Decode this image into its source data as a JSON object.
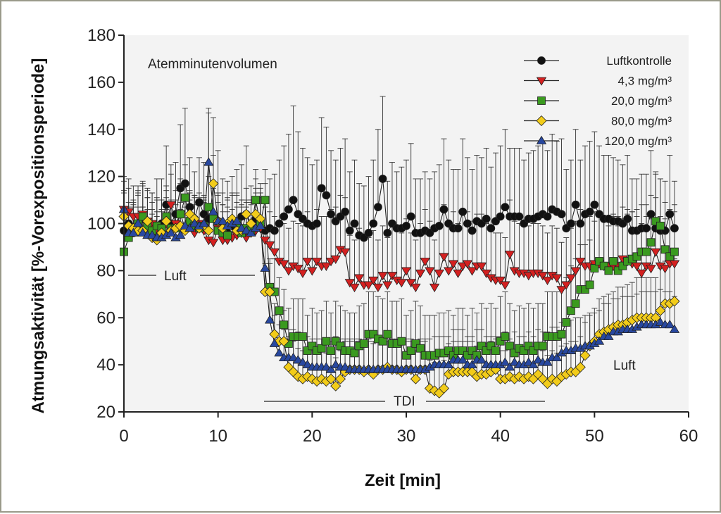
{
  "colors": {
    "background": "#f3f3f3",
    "axis": "#222222",
    "frame": "#9a9a8a"
  },
  "chart_data": {
    "type": "line",
    "title": "Atemminutenvolumen",
    "xlabel": "Zeit [min]",
    "ylabel": "Atmungsaktivität [%-Vorexpositionsperiode]",
    "xlim": [
      0,
      60
    ],
    "ylim": [
      20,
      180
    ],
    "xticks": [
      0,
      10,
      20,
      30,
      40,
      50,
      60
    ],
    "yticks": [
      20,
      40,
      60,
      80,
      100,
      120,
      140,
      160,
      180
    ],
    "legend_position": "top-right",
    "annotations": [
      {
        "id": "luft-pre",
        "text": "Luft",
        "x": 6,
        "y": 78
      },
      {
        "id": "tdi",
        "text": "TDI",
        "x": 30,
        "y": 25
      },
      {
        "id": "luft-post",
        "text": "Luft",
        "x": 53,
        "y": 40
      }
    ],
    "x": [
      0,
      0.5,
      1,
      1.5,
      2,
      2.5,
      3,
      3.5,
      4,
      4.5,
      5,
      5.5,
      6,
      6.5,
      7,
      7.5,
      8,
      8.5,
      9,
      9.5,
      10,
      10.5,
      11,
      11.5,
      12,
      12.5,
      13,
      13.5,
      14,
      14.5,
      15,
      15.5,
      16,
      16.5,
      17,
      17.5,
      18,
      18.5,
      19,
      19.5,
      20,
      20.5,
      21,
      21.5,
      22,
      22.5,
      23,
      23.5,
      24,
      24.5,
      25,
      25.5,
      26,
      26.5,
      27,
      27.5,
      28,
      28.5,
      29,
      29.5,
      30,
      30.5,
      31,
      31.5,
      32,
      32.5,
      33,
      33.5,
      34,
      34.5,
      35,
      35.5,
      36,
      36.5,
      37,
      37.5,
      38,
      38.5,
      39,
      39.5,
      40,
      40.5,
      41,
      41.5,
      42,
      42.5,
      43,
      43.5,
      44,
      44.5,
      45,
      45.5,
      46,
      46.5,
      47,
      47.5,
      48,
      48.5,
      49,
      49.5,
      50,
      50.5,
      51,
      51.5,
      52,
      52.5,
      53,
      53.5,
      54,
      54.5,
      55,
      55.5,
      56,
      56.5,
      57,
      57.5,
      58,
      58.5
    ],
    "series": [
      {
        "name": "Luftkontrolle",
        "marker": "circle",
        "color": "#111111",
        "values": [
          97,
          100,
          96,
          98,
          102,
          100,
          96,
          99,
          100,
          108,
          100,
          104,
          115,
          117,
          107,
          102,
          109,
          104,
          102,
          102,
          101,
          100,
          96,
          99,
          100,
          103,
          104,
          98,
          102,
          100,
          97,
          98,
          97,
          100,
          103,
          106,
          110,
          104,
          102,
          100,
          99,
          100,
          115,
          112,
          104,
          101,
          103,
          105,
          97,
          100,
          95,
          94,
          96,
          100,
          107,
          119,
          96,
          100,
          98,
          98,
          99,
          103,
          96,
          96,
          97,
          96,
          98,
          99,
          106,
          100,
          98,
          98,
          105,
          100,
          97,
          101,
          100,
          102,
          98,
          101,
          103,
          107,
          103,
          103,
          103,
          100,
          102,
          102,
          103,
          104,
          103,
          106,
          105,
          104,
          98,
          100,
          108,
          100,
          104,
          105,
          108,
          104,
          102,
          102,
          101,
          101,
          100,
          102,
          97,
          97,
          98,
          98,
          104,
          98,
          97,
          97,
          104,
          98
        ],
        "errors": [
          17,
          15,
          14,
          16,
          15,
          15,
          17,
          20,
          19,
          25,
          21,
          22,
          27,
          32,
          21,
          20,
          19,
          22,
          45,
          43,
          30,
          19,
          22,
          21,
          23,
          22,
          29,
          18,
          17,
          17,
          20,
          21,
          24,
          27,
          30,
          32,
          40,
          35,
          30,
          28,
          26,
          27,
          30,
          29,
          27,
          26,
          29,
          31,
          25,
          27,
          22,
          22,
          24,
          27,
          33,
          35,
          22,
          26,
          24,
          26,
          28,
          31,
          23,
          23,
          25,
          23,
          24,
          26,
          30,
          27,
          25,
          25,
          31,
          28,
          26,
          28,
          28,
          30,
          26,
          29,
          30,
          33,
          29,
          29,
          29,
          27,
          28,
          29,
          30,
          30,
          28,
          32,
          30,
          32,
          25,
          27,
          32,
          27,
          29,
          30,
          31,
          29,
          27,
          27,
          27,
          26,
          25,
          27,
          22,
          22,
          23,
          23,
          27,
          23,
          22,
          21,
          25,
          20
        ]
      },
      {
        "name": "4,3 mg/m³",
        "marker": "triangle-down",
        "color": "#d42020",
        "values": [
          106,
          105,
          103,
          103,
          104,
          101,
          100,
          98,
          98,
          100,
          108,
          100,
          104,
          98,
          100,
          96,
          100,
          97,
          93,
          92,
          98,
          93,
          93,
          94,
          95,
          96,
          94,
          96,
          97,
          98,
          93,
          91,
          88,
          84,
          83,
          80,
          82,
          81,
          79,
          84,
          80,
          84,
          82,
          82,
          84,
          85,
          89,
          88,
          75,
          73,
          77,
          74,
          74,
          76,
          73,
          78,
          74,
          78,
          76,
          75,
          80,
          75,
          73,
          79,
          84,
          80,
          73,
          79,
          86,
          80,
          83,
          79,
          82,
          83,
          80,
          82,
          82,
          79,
          77,
          76,
          76,
          74,
          87,
          80,
          79,
          79,
          78,
          79,
          79,
          78,
          76,
          78,
          77,
          72,
          74,
          77,
          80,
          84,
          82,
          82,
          83,
          83,
          82,
          82,
          82,
          82,
          85,
          84,
          83,
          82,
          79,
          82,
          81,
          88,
          82,
          81,
          83,
          83
        ],
        "errors": [
          14,
          14,
          13,
          13,
          14,
          13,
          13,
          12,
          12,
          14,
          17,
          14,
          15,
          12,
          13,
          12,
          13,
          13,
          11,
          12,
          15,
          12,
          12,
          12,
          14,
          14,
          13,
          14,
          16,
          17,
          14,
          14,
          15,
          16,
          17,
          18,
          19,
          19,
          20,
          21,
          20,
          22,
          21,
          21,
          22,
          22,
          23,
          23,
          20,
          20,
          21,
          20,
          20,
          21,
          20,
          21,
          20,
          21,
          21,
          21,
          22,
          21,
          20,
          21,
          22,
          21,
          20,
          21,
          22,
          21,
          22,
          21,
          22,
          22,
          21,
          22,
          22,
          21,
          20,
          20,
          20,
          20,
          23,
          21,
          21,
          21,
          21,
          21,
          21,
          21,
          20,
          21,
          21,
          20,
          20,
          21,
          21,
          22,
          21,
          21,
          22,
          22,
          21,
          21,
          21,
          21,
          22,
          22,
          22,
          21,
          21,
          21,
          21,
          23,
          21,
          21,
          22,
          22
        ]
      },
      {
        "name": "20,0 mg/m³",
        "marker": "square",
        "color": "#3a9a1f",
        "values": [
          88,
          94,
          97,
          100,
          103,
          99,
          97,
          99,
          98,
          103,
          98,
          98,
          104,
          111,
          101,
          99,
          98,
          99,
          107,
          102,
          97,
          96,
          95,
          101,
          100,
          96,
          98,
          97,
          110,
          100,
          110,
          73,
          71,
          63,
          57,
          49,
          52,
          52,
          52,
          46,
          48,
          46,
          47,
          50,
          46,
          50,
          48,
          46,
          46,
          45,
          48,
          49,
          53,
          53,
          51,
          50,
          53,
          49,
          49,
          50,
          44,
          46,
          49,
          47,
          44,
          44,
          44,
          45,
          45,
          46,
          44,
          46,
          46,
          44,
          46,
          44,
          48,
          46,
          48,
          46,
          50,
          52,
          48,
          45,
          47,
          46,
          48,
          46,
          48,
          48,
          52,
          52,
          52,
          53,
          58,
          63,
          66,
          72,
          72,
          74,
          81,
          84,
          82,
          80,
          84,
          80,
          82,
          84,
          85,
          86,
          88,
          88,
          92,
          101,
          99,
          89,
          86,
          88
        ],
        "errors": [
          10,
          12,
          12,
          13,
          13,
          12,
          12,
          12,
          12,
          13,
          12,
          12,
          13,
          14,
          12,
          12,
          12,
          12,
          13,
          13,
          12,
          12,
          12,
          12,
          12,
          12,
          12,
          12,
          13,
          13,
          13,
          12,
          14,
          14,
          15,
          15,
          16,
          16,
          16,
          15,
          16,
          16,
          16,
          17,
          16,
          17,
          17,
          17,
          16,
          17,
          17,
          17,
          18,
          18,
          18,
          18,
          18,
          18,
          18,
          18,
          17,
          17,
          18,
          18,
          17,
          17,
          17,
          17,
          17,
          17,
          17,
          18,
          18,
          17,
          18,
          18,
          18,
          18,
          18,
          18,
          19,
          19,
          18,
          18,
          18,
          18,
          18,
          18,
          18,
          18,
          19,
          19,
          19,
          19,
          19,
          19,
          19,
          19,
          19,
          19,
          20,
          20,
          19,
          19,
          20,
          19,
          20,
          20,
          20,
          20,
          20,
          20,
          20,
          21,
          20,
          20,
          20,
          20
        ]
      },
      {
        "name": "80,0 mg/m³",
        "marker": "diamond",
        "color": "#f2cc1a",
        "values": [
          103,
          99,
          98,
          97,
          97,
          101,
          94,
          93,
          96,
          101,
          97,
          98,
          99,
          97,
          104,
          102,
          98,
          99,
          97,
          117,
          101,
          98,
          100,
          102,
          97,
          97,
          104,
          100,
          104,
          102,
          71,
          71,
          53,
          50,
          50,
          39,
          37,
          35,
          34,
          35,
          34,
          33,
          34,
          33,
          34,
          31,
          34,
          37,
          38,
          38,
          38,
          37,
          38,
          36,
          38,
          38,
          39,
          38,
          38,
          37,
          38,
          38,
          34,
          38,
          38,
          30,
          29,
          28,
          30,
          36,
          37,
          37,
          37,
          37,
          37,
          35,
          36,
          36,
          37,
          38,
          34,
          34,
          35,
          34,
          35,
          34,
          35,
          34,
          36,
          34,
          32,
          34,
          33,
          35,
          36,
          37,
          37,
          39,
          44,
          48,
          50,
          53,
          54,
          55,
          56,
          57,
          57,
          58,
          59,
          60,
          60,
          60,
          60,
          60,
          63,
          66,
          66,
          67
        ],
        "errors": [
          10,
          10,
          10,
          10,
          10,
          10,
          10,
          10,
          10,
          10,
          10,
          10,
          10,
          10,
          10,
          10,
          10,
          10,
          10,
          12,
          11,
          10,
          10,
          11,
          10,
          10,
          11,
          10,
          11,
          11,
          12,
          12,
          13,
          13,
          13,
          13,
          13,
          12,
          12,
          12,
          12,
          12,
          12,
          12,
          12,
          12,
          12,
          13,
          13,
          13,
          13,
          13,
          13,
          13,
          13,
          13,
          13,
          13,
          13,
          13,
          13,
          13,
          12,
          13,
          13,
          12,
          12,
          12,
          12,
          13,
          13,
          13,
          13,
          13,
          13,
          13,
          13,
          13,
          13,
          13,
          12,
          12,
          13,
          12,
          13,
          12,
          13,
          12,
          13,
          12,
          12,
          12,
          12,
          13,
          13,
          13,
          13,
          13,
          14,
          14,
          14,
          15,
          15,
          15,
          15,
          16,
          16,
          16,
          16,
          17,
          17,
          17,
          17,
          17,
          18,
          18,
          18,
          18
        ]
      },
      {
        "name": "120,0 mg/m³",
        "marker": "triangle-up",
        "color": "#2848a0",
        "values": [
          106,
          96,
          96,
          100,
          96,
          95,
          95,
          94,
          94,
          95,
          96,
          94,
          95,
          99,
          98,
          100,
          99,
          100,
          126,
          105,
          101,
          101,
          99,
          100,
          101,
          98,
          97,
          96,
          98,
          99,
          81,
          59,
          49,
          45,
          43,
          43,
          43,
          42,
          41,
          40,
          39,
          39,
          39,
          39,
          38,
          40,
          39,
          39,
          38,
          38,
          38,
          38,
          38,
          38,
          38,
          38,
          38,
          38,
          38,
          38,
          38,
          38,
          38,
          38,
          38,
          39,
          40,
          40,
          40,
          40,
          42,
          42,
          42,
          40,
          40,
          42,
          42,
          40,
          40,
          40,
          40,
          41,
          39,
          41,
          40,
          40,
          41,
          40,
          42,
          41,
          41,
          43,
          43,
          45,
          46,
          46,
          47,
          47,
          48,
          48,
          49,
          50,
          52,
          52,
          54,
          54,
          55,
          55,
          55,
          56,
          57,
          57,
          57,
          57,
          58,
          57,
          57,
          55
        ],
        "errors": [
          12,
          11,
          11,
          12,
          11,
          11,
          11,
          11,
          11,
          11,
          11,
          11,
          11,
          12,
          12,
          12,
          12,
          12,
          23,
          13,
          12,
          12,
          12,
          12,
          12,
          12,
          12,
          12,
          12,
          12,
          13,
          13,
          12,
          12,
          12,
          12,
          12,
          12,
          12,
          12,
          12,
          12,
          12,
          12,
          12,
          12,
          12,
          12,
          12,
          12,
          12,
          12,
          12,
          12,
          12,
          12,
          12,
          12,
          12,
          12,
          12,
          12,
          12,
          12,
          12,
          12,
          12,
          12,
          12,
          12,
          13,
          13,
          13,
          12,
          12,
          13,
          13,
          12,
          12,
          12,
          12,
          13,
          12,
          13,
          12,
          12,
          13,
          12,
          13,
          13,
          13,
          13,
          13,
          13,
          13,
          13,
          13,
          13,
          13,
          13,
          13,
          13,
          14,
          14,
          14,
          14,
          14,
          14,
          14,
          14,
          14,
          14,
          14,
          14,
          14,
          14,
          14,
          14
        ]
      }
    ]
  }
}
